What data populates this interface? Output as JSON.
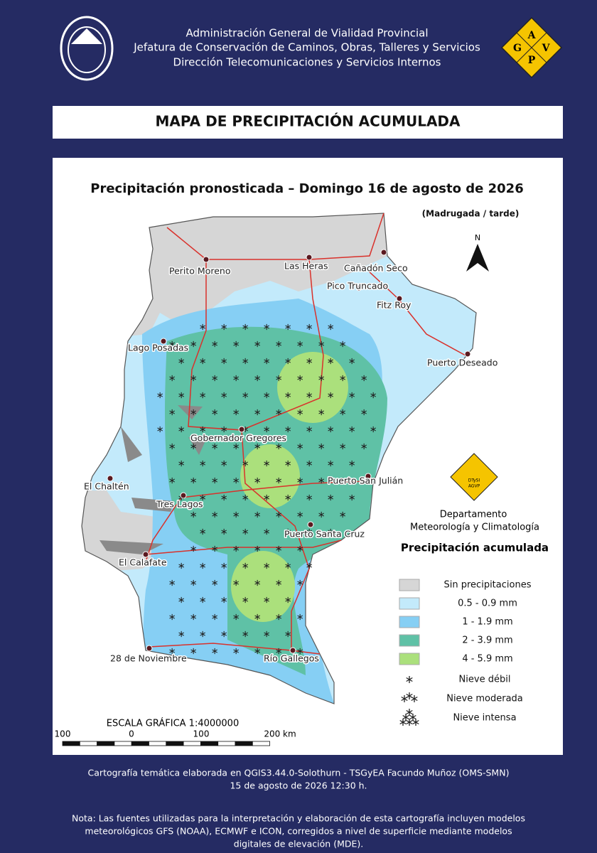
{
  "header": {
    "lines": [
      "Administración General de Vialidad Provincial",
      "Jefatura de Conservación de Caminos, Obras, Talleres y Servicios",
      "Dirección Telecomunicaciones y Servicios Internos"
    ],
    "logo_letters": [
      "A",
      "G",
      "V",
      "P"
    ]
  },
  "title": "MAPA DE PRECIPITACIÓN ACUMULADA",
  "map": {
    "subtitle": "Precipitación pronosticada – Domingo 16 de agosto de 2026",
    "period": "(Madrugada / tarde)",
    "north": "N",
    "places": [
      "Perito Moreno",
      "Las Heras",
      "Cañadón Seco",
      "Pico Truncado",
      "Fitz Roy",
      "Lago Posadas",
      "Puerto Deseado",
      "Gobernador Gregores",
      "Puerto San Julián",
      "El Chaltén",
      "Tres Lagos",
      "Puerto Santa Cruz",
      "El Calafate",
      "28 de Noviembre",
      "Río Gallegos"
    ],
    "dept_logo": [
      "DTySI",
      "AGVP"
    ],
    "department": [
      "Departamento",
      "Meteorología y Climatología"
    ],
    "legend": {
      "title": "Precipitación acumulada",
      "fills": [
        {
          "label": "Sin precipitaciones",
          "color": "#d6d6d6"
        },
        {
          "label": "0.5 - 0.9 mm",
          "color": "#c3eafb"
        },
        {
          "label": "1 - 1.9 mm",
          "color": "#86cff4"
        },
        {
          "label": "2 - 3.9 mm",
          "color": "#5fc1a6"
        },
        {
          "label": "4 - 5.9 mm",
          "color": "#abe07c"
        }
      ],
      "snow": [
        "Nieve débil",
        "Nieve moderada",
        "Nieve intensa"
      ]
    },
    "scale": {
      "title": "ESCALA GRÁFICA 1:4000000",
      "ticks": [
        "100",
        "0",
        "100",
        "200 km"
      ]
    }
  },
  "footer": {
    "credit": [
      "Cartografía temática elaborada en QGIS3.44.0-Solothurn - TSGyEA Facundo Muñoz (OMS-SMN)",
      "15 de agosto de 2026 12:30 h."
    ],
    "note": [
      "Nota: Las fuentes utilizadas para la interpretación y elaboración de esta cartografía incluyen modelos",
      "meteorológicos GFS (NOAA), ECMWF e ICON, corregidos a nivel de superficie mediante modelos",
      "digitales de elevación (MDE)."
    ]
  }
}
